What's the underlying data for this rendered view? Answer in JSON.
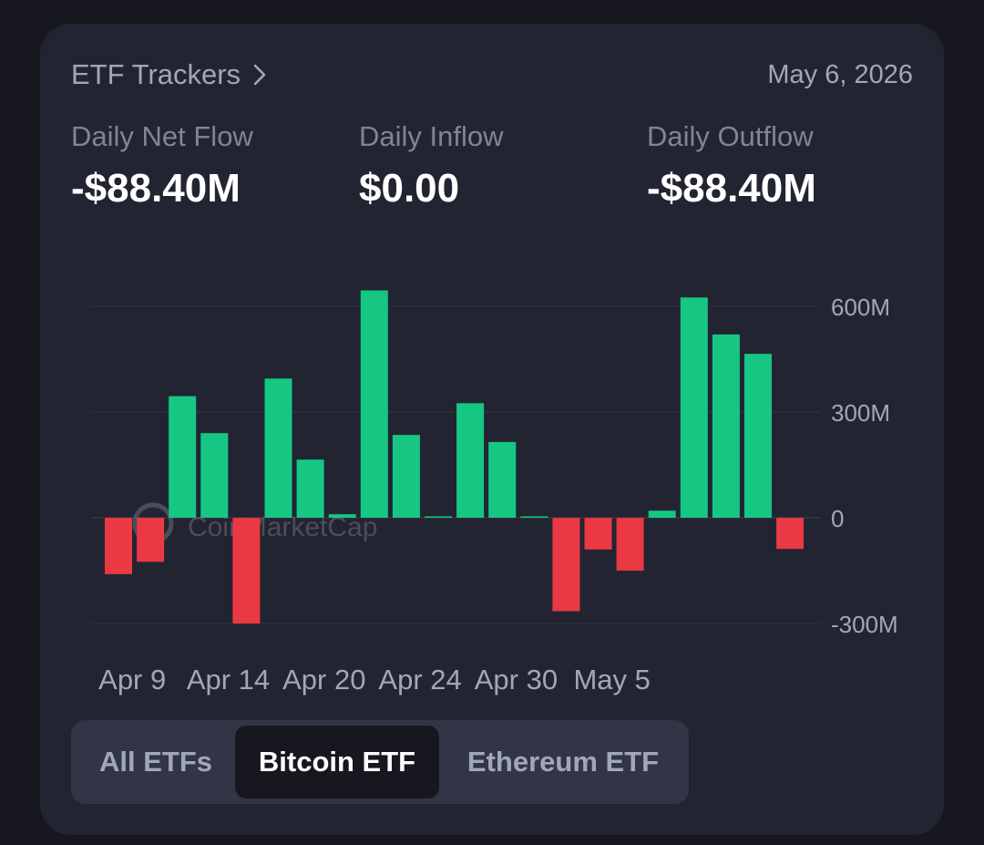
{
  "header": {
    "title": "ETF Trackers",
    "date": "May 6, 2026"
  },
  "metrics": [
    {
      "label": "Daily Net Flow",
      "value": "-$88.40M"
    },
    {
      "label": "Daily Inflow",
      "value": "$0.00"
    },
    {
      "label": "Daily Outflow",
      "value": "-$88.40M"
    }
  ],
  "watermark": "CoinMarketCap",
  "tabs": [
    {
      "label": "All ETFs",
      "active": false
    },
    {
      "label": "Bitcoin ETF",
      "active": true
    },
    {
      "label": "Ethereum ETF",
      "active": false
    }
  ],
  "colors": {
    "positive": "#16c784",
    "negative": "#ea3943"
  },
  "chart_data": {
    "type": "bar",
    "x_tick_labels": [
      "Apr 9",
      "Apr 14",
      "Apr 20",
      "Apr 24",
      "Apr 30",
      "May 5"
    ],
    "y_ticks": [
      600,
      300,
      0,
      -300
    ],
    "y_tick_labels": [
      "600M",
      "300M",
      "0",
      "-300M"
    ],
    "ylim": [
      -330,
      650
    ],
    "values": [
      -160,
      -125,
      345,
      240,
      -300,
      395,
      165,
      10,
      645,
      235,
      0,
      325,
      215,
      0,
      -265,
      -90,
      -150,
      20,
      625,
      520,
      465,
      -88.4
    ],
    "tick_positions": [
      2,
      5,
      8,
      11,
      14,
      17
    ],
    "grid": true,
    "legend": "none"
  }
}
